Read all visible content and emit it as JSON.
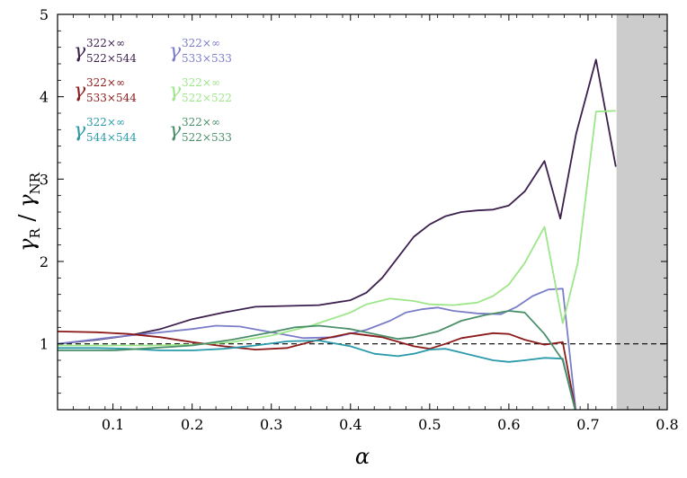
{
  "chart_data": {
    "type": "line",
    "xlabel": "α",
    "ylabel": "γR / γNR",
    "ylabel_parts": {
      "main1": "γ",
      "sub1": "R",
      "sep": " / ",
      "main2": "γ",
      "sub2": "NR"
    },
    "xlim": [
      0.03,
      0.8
    ],
    "ylim": [
      0.2,
      5.0
    ],
    "xticks": [
      0.1,
      0.2,
      0.3,
      0.4,
      0.5,
      0.6,
      0.7,
      0.8
    ],
    "xtick_labels": [
      "0.1",
      "0.2",
      "0.3",
      "0.4",
      "0.5",
      "0.6",
      "0.7",
      "0.8"
    ],
    "yticks": [
      1,
      2,
      3,
      4,
      5
    ],
    "ytick_labels": [
      "1",
      "2",
      "3",
      "4",
      "5"
    ],
    "shaded_region": {
      "x_from": 0.736,
      "x_to": 0.8,
      "color": "#cccccc"
    },
    "reference_line": {
      "y": 1.0,
      "style": "dashed",
      "color": "#000000"
    },
    "series": [
      {
        "name": "γ 322×∞ 522×544",
        "sym": "γ",
        "sup": "322×∞",
        "sub": "522×544",
        "color": "#3b1f4d",
        "x": [
          0.03,
          0.08,
          0.12,
          0.16,
          0.2,
          0.24,
          0.28,
          0.32,
          0.36,
          0.4,
          0.42,
          0.44,
          0.46,
          0.48,
          0.5,
          0.52,
          0.54,
          0.56,
          0.58,
          0.6,
          0.62,
          0.645,
          0.665,
          0.685,
          0.71,
          0.735
        ],
        "y": [
          1.0,
          1.05,
          1.1,
          1.18,
          1.3,
          1.38,
          1.45,
          1.46,
          1.47,
          1.53,
          1.62,
          1.8,
          2.05,
          2.3,
          2.45,
          2.55,
          2.6,
          2.62,
          2.63,
          2.68,
          2.85,
          3.22,
          2.52,
          3.55,
          4.45,
          3.15
        ]
      },
      {
        "name": "γ 322×∞ 533×533",
        "sym": "γ",
        "sup": "322×∞",
        "sub": "533×533",
        "color": "#7b7dc9",
        "x": [
          0.03,
          0.1,
          0.15,
          0.2,
          0.23,
          0.26,
          0.3,
          0.34,
          0.38,
          0.42,
          0.45,
          0.47,
          0.49,
          0.51,
          0.53,
          0.56,
          0.59,
          0.61,
          0.63,
          0.65,
          0.668,
          0.685
        ],
        "y": [
          1.0,
          1.08,
          1.13,
          1.18,
          1.22,
          1.21,
          1.14,
          1.07,
          1.08,
          1.17,
          1.28,
          1.38,
          1.42,
          1.44,
          1.4,
          1.37,
          1.36,
          1.45,
          1.58,
          1.66,
          1.67,
          0.15
        ]
      },
      {
        "name": "γ 322×∞ 533×544",
        "sym": "γ",
        "sup": "322×∞",
        "sub": "533×544",
        "color": "#8b1a1a",
        "x": [
          0.03,
          0.08,
          0.12,
          0.16,
          0.2,
          0.24,
          0.28,
          0.32,
          0.36,
          0.4,
          0.44,
          0.48,
          0.5,
          0.52,
          0.54,
          0.58,
          0.6,
          0.62,
          0.645,
          0.668,
          0.685
        ],
        "y": [
          1.15,
          1.14,
          1.12,
          1.08,
          1.02,
          0.97,
          0.93,
          0.95,
          1.05,
          1.13,
          1.08,
          0.97,
          0.94,
          1.0,
          1.07,
          1.13,
          1.12,
          1.05,
          0.99,
          1.02,
          0.15
        ]
      },
      {
        "name": "γ 322×∞ 522×522",
        "sym": "γ",
        "sup": "322×∞",
        "sub": "522×522",
        "color": "#9ee68a",
        "x": [
          0.03,
          0.1,
          0.15,
          0.2,
          0.25,
          0.3,
          0.35,
          0.4,
          0.42,
          0.45,
          0.48,
          0.5,
          0.53,
          0.56,
          0.58,
          0.6,
          0.62,
          0.645,
          0.668,
          0.687,
          0.71,
          0.735
        ],
        "y": [
          0.98,
          0.98,
          0.98,
          0.99,
          1.02,
          1.1,
          1.22,
          1.38,
          1.48,
          1.55,
          1.52,
          1.48,
          1.47,
          1.5,
          1.58,
          1.72,
          1.98,
          2.42,
          1.25,
          1.98,
          3.82,
          3.83
        ]
      },
      {
        "name": "γ 322×∞ 544×544",
        "sym": "γ",
        "sup": "322×∞",
        "sub": "544×544",
        "color": "#2a9aaa",
        "x": [
          0.03,
          0.08,
          0.12,
          0.16,
          0.2,
          0.24,
          0.28,
          0.32,
          0.36,
          0.4,
          0.43,
          0.46,
          0.48,
          0.5,
          0.52,
          0.55,
          0.58,
          0.6,
          0.62,
          0.645,
          0.668,
          0.685
        ],
        "y": [
          0.95,
          0.95,
          0.94,
          0.92,
          0.92,
          0.94,
          0.98,
          1.03,
          1.04,
          0.97,
          0.88,
          0.85,
          0.88,
          0.93,
          0.94,
          0.87,
          0.8,
          0.78,
          0.8,
          0.83,
          0.82,
          0.15
        ]
      },
      {
        "name": "γ 322×∞ 522×533",
        "sym": "γ",
        "sup": "322×∞",
        "sub": "522×533",
        "color": "#4a8f6a",
        "x": [
          0.03,
          0.1,
          0.15,
          0.2,
          0.25,
          0.3,
          0.33,
          0.36,
          0.4,
          0.43,
          0.46,
          0.48,
          0.51,
          0.54,
          0.57,
          0.6,
          0.62,
          0.645,
          0.668,
          0.685
        ],
        "y": [
          0.92,
          0.92,
          0.95,
          0.98,
          1.05,
          1.14,
          1.2,
          1.22,
          1.18,
          1.12,
          1.06,
          1.08,
          1.15,
          1.28,
          1.35,
          1.4,
          1.38,
          1.12,
          0.8,
          0.15
        ]
      }
    ]
  }
}
